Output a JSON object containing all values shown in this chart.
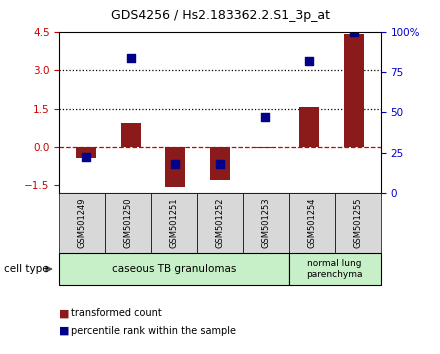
{
  "title": "GDS4256 / Hs2.183362.2.S1_3p_at",
  "samples": [
    "GSM501249",
    "GSM501250",
    "GSM501251",
    "GSM501252",
    "GSM501253",
    "GSM501254",
    "GSM501255"
  ],
  "transformed_counts": [
    -0.45,
    0.95,
    -1.55,
    -1.3,
    -0.05,
    1.55,
    4.4
  ],
  "percentile_ranks": [
    22,
    84,
    18,
    18,
    47,
    82,
    100
  ],
  "ylim_left": [
    -1.8,
    4.5
  ],
  "ylim_right": [
    0,
    100
  ],
  "y_ticks_left": [
    -1.5,
    0,
    1.5,
    3,
    4.5
  ],
  "y_ticks_right": [
    0,
    25,
    50,
    75,
    100
  ],
  "hlines": [
    {
      "y": 0.0,
      "color": "#cc0000",
      "ls": "--",
      "lw": 0.9
    },
    {
      "y": 1.5,
      "color": "black",
      "ls": ":",
      "lw": 0.9
    },
    {
      "y": 3.0,
      "color": "black",
      "ls": ":",
      "lw": 0.9
    }
  ],
  "bar_color": "#8B1A1A",
  "dot_color": "#00008B",
  "background_color": "#ffffff",
  "plot_bg_color": "#ffffff",
  "group1_label": "caseous TB granulomas",
  "group2_label": "normal lung\nparenchyma",
  "group1_n": 5,
  "group2_n": 2,
  "group_bg": "#c8f0c8",
  "sample_box_bg": "#d8d8d8",
  "cell_type_label": "cell type",
  "legend_tc_label": "transformed count",
  "legend_pr_label": "percentile rank within the sample",
  "bar_width": 0.45,
  "dot_size": 40,
  "right_axis_color": "#0000cc",
  "left_axis_color": "#cc0000",
  "title_fontsize": 9,
  "tick_fontsize": 7.5,
  "sample_fontsize": 6,
  "group_fontsize": 7.5,
  "legend_fontsize": 7
}
